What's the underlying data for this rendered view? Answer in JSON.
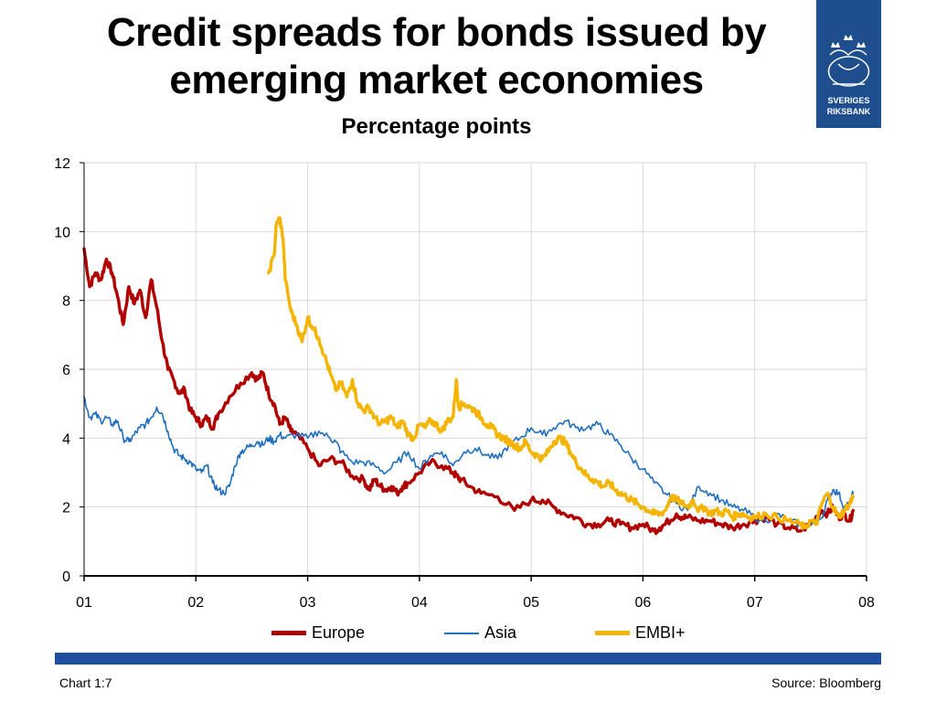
{
  "title": "Credit spreads for bonds issued by emerging market economies",
  "subtitle": "Percentage points",
  "footer": {
    "chart_label": "Chart 1:7",
    "source": "Source: Bloomberg"
  },
  "logo": {
    "text_line1": "SVERIGES",
    "text_line2": "RIKSBANK",
    "bg_color": "#1f4e8f"
  },
  "colors": {
    "europe": "#b00000",
    "asia": "#1f6fc0",
    "embi": "#f4b400",
    "rule": "#1f4e9e"
  },
  "chart_data": {
    "type": "line",
    "title": "Credit spreads for bonds issued by emerging market economies",
    "subtitle": "Percentage points",
    "xlabel": "",
    "ylabel": "",
    "x_tick_labels": [
      "01",
      "02",
      "03",
      "04",
      "05",
      "06",
      "07",
      "08"
    ],
    "xlim": [
      2001.0,
      2008.0
    ],
    "y_ticks": [
      0,
      2,
      4,
      6,
      8,
      10,
      12
    ],
    "ylim": [
      0,
      12
    ],
    "grid": true,
    "legend_position": "bottom",
    "series": [
      {
        "name": "Europe",
        "color": "#b00000",
        "x": [
          2001.0,
          2001.05,
          2001.1,
          2001.15,
          2001.2,
          2001.25,
          2001.3,
          2001.35,
          2001.4,
          2001.45,
          2001.5,
          2001.55,
          2001.6,
          2001.65,
          2001.7,
          2001.75,
          2001.8,
          2001.85,
          2001.9,
          2001.95,
          2002.0,
          2002.05,
          2002.1,
          2002.15,
          2002.2,
          2002.3,
          2002.4,
          2002.5,
          2002.55,
          2002.6,
          2002.65,
          2002.7,
          2002.75,
          2002.8,
          2002.85,
          2002.9,
          2003.0,
          2003.1,
          2003.2,
          2003.3,
          2003.4,
          2003.5,
          2003.55,
          2003.6,
          2003.65,
          2003.7,
          2003.75,
          2003.8,
          2003.85,
          2003.9,
          2004.0,
          2004.1,
          2004.2,
          2004.3,
          2004.33,
          2004.37,
          2004.45,
          2004.55,
          2004.7,
          2004.85,
          2005.0,
          2005.1,
          2005.2,
          2005.3,
          2005.4,
          2005.5,
          2005.6,
          2005.7,
          2005.8,
          2005.9,
          2006.0,
          2006.1,
          2006.15,
          2006.2,
          2006.3,
          2006.35,
          2006.4,
          2006.5,
          2006.6,
          2006.7,
          2006.8,
          2006.9,
          2007.0,
          2007.1,
          2007.2,
          2007.3,
          2007.4,
          2007.5,
          2007.6,
          2007.65,
          2007.7,
          2007.75,
          2007.8,
          2007.85,
          2007.88
        ],
        "y": [
          9.5,
          8.4,
          8.8,
          8.6,
          9.2,
          8.8,
          8.1,
          7.3,
          8.4,
          7.9,
          8.3,
          7.5,
          8.6,
          7.8,
          6.8,
          6.0,
          5.7,
          5.3,
          5.4,
          4.8,
          4.6,
          4.4,
          4.6,
          4.3,
          4.7,
          5.2,
          5.6,
          5.9,
          5.7,
          5.9,
          5.3,
          5.0,
          4.4,
          4.6,
          4.2,
          4.1,
          3.7,
          3.2,
          3.4,
          3.3,
          2.9,
          2.8,
          2.5,
          2.8,
          2.6,
          2.5,
          2.6,
          2.4,
          2.6,
          2.7,
          3.0,
          3.3,
          3.2,
          3.0,
          2.9,
          2.8,
          2.6,
          2.4,
          2.3,
          1.9,
          2.2,
          2.2,
          2.0,
          1.8,
          1.7,
          1.5,
          1.5,
          1.6,
          1.5,
          1.4,
          1.5,
          1.3,
          1.4,
          1.5,
          1.8,
          1.7,
          1.7,
          1.6,
          1.6,
          1.5,
          1.4,
          1.5,
          1.6,
          1.7,
          1.5,
          1.4,
          1.3,
          1.5,
          1.9,
          1.8,
          2.0,
          1.7,
          1.8,
          1.6,
          1.9
        ]
      },
      {
        "name": "Asia",
        "color": "#1f6fc0",
        "x": [
          2001.0,
          2001.05,
          2001.1,
          2001.15,
          2001.2,
          2001.25,
          2001.3,
          2001.35,
          2001.4,
          2001.45,
          2001.5,
          2001.55,
          2001.6,
          2001.65,
          2001.7,
          2001.75,
          2001.8,
          2001.85,
          2001.9,
          2001.95,
          2002.0,
          2002.05,
          2002.1,
          2002.15,
          2002.2,
          2002.25,
          2002.3,
          2002.35,
          2002.4,
          2002.45,
          2002.5,
          2002.55,
          2002.6,
          2002.65,
          2002.7,
          2002.75,
          2002.8,
          2002.9,
          2003.0,
          2003.1,
          2003.2,
          2003.25,
          2003.3,
          2003.4,
          2003.5,
          2003.6,
          2003.7,
          2003.8,
          2003.9,
          2004.0,
          2004.1,
          2004.2,
          2004.3,
          2004.4,
          2004.5,
          2004.6,
          2004.7,
          2004.8,
          2004.9,
          2005.0,
          2005.1,
          2005.2,
          2005.3,
          2005.4,
          2005.5,
          2005.6,
          2005.7,
          2005.8,
          2005.9,
          2006.0,
          2006.1,
          2006.2,
          2006.3,
          2006.4,
          2006.5,
          2006.6,
          2006.7,
          2006.8,
          2006.9,
          2007.0,
          2007.1,
          2007.2,
          2007.3,
          2007.4,
          2007.5,
          2007.6,
          2007.65,
          2007.7,
          2007.75,
          2007.8,
          2007.85,
          2007.88
        ],
        "y": [
          5.2,
          4.6,
          4.7,
          4.5,
          4.6,
          4.4,
          4.5,
          4.0,
          3.9,
          4.1,
          4.3,
          4.4,
          4.6,
          4.9,
          4.7,
          4.2,
          3.7,
          3.5,
          3.4,
          3.3,
          3.1,
          3.0,
          3.2,
          2.7,
          2.5,
          2.4,
          2.6,
          3.2,
          3.6,
          3.7,
          3.8,
          3.9,
          3.8,
          4.0,
          3.9,
          4.1,
          4.0,
          4.1,
          4.0,
          4.2,
          4.0,
          3.9,
          3.6,
          3.3,
          3.3,
          3.2,
          3.0,
          3.3,
          3.6,
          3.1,
          3.5,
          3.6,
          3.2,
          3.6,
          3.7,
          3.5,
          3.4,
          3.8,
          4.0,
          4.3,
          4.1,
          4.3,
          4.5,
          4.3,
          4.3,
          4.4,
          4.1,
          3.8,
          3.4,
          3.1,
          2.7,
          2.4,
          2.1,
          1.9,
          2.6,
          2.4,
          2.2,
          2.0,
          1.9,
          1.7,
          1.6,
          1.8,
          1.6,
          1.5,
          1.5,
          1.7,
          2.2,
          2.5,
          2.4,
          2.0,
          2.1,
          2.4
        ]
      },
      {
        "name": "EMBI+",
        "color": "#f4b400",
        "x": [
          2002.65,
          2002.7,
          2002.72,
          2002.75,
          2002.78,
          2002.8,
          2002.85,
          2002.9,
          2002.95,
          2003.0,
          2003.05,
          2003.1,
          2003.15,
          2003.2,
          2003.25,
          2003.3,
          2003.35,
          2003.4,
          2003.45,
          2003.5,
          2003.55,
          2003.6,
          2003.65,
          2003.7,
          2003.75,
          2003.8,
          2003.85,
          2003.9,
          2003.95,
          2004.0,
          2004.05,
          2004.1,
          2004.15,
          2004.2,
          2004.25,
          2004.3,
          2004.33,
          2004.35,
          2004.4,
          2004.45,
          2004.5,
          2004.55,
          2004.6,
          2004.65,
          2004.7,
          2004.75,
          2004.8,
          2004.85,
          2004.9,
          2004.95,
          2005.0,
          2005.05,
          2005.1,
          2005.15,
          2005.2,
          2005.25,
          2005.3,
          2005.35,
          2005.4,
          2005.45,
          2005.5,
          2005.55,
          2005.6,
          2005.65,
          2005.7,
          2005.75,
          2005.8,
          2005.85,
          2005.9,
          2005.95,
          2006.0,
          2006.05,
          2006.1,
          2006.15,
          2006.2,
          2006.25,
          2006.3,
          2006.35,
          2006.4,
          2006.45,
          2006.5,
          2006.55,
          2006.6,
          2006.65,
          2006.7,
          2006.75,
          2006.8,
          2006.85,
          2006.9,
          2006.95,
          2007.0,
          2007.1,
          2007.2,
          2007.3,
          2007.4,
          2007.45,
          2007.5,
          2007.55,
          2007.6,
          2007.65,
          2007.7,
          2007.75,
          2007.8,
          2007.85,
          2007.88
        ],
        "y": [
          8.8,
          9.3,
          10.2,
          10.4,
          9.8,
          8.6,
          7.7,
          7.3,
          6.8,
          7.5,
          7.2,
          6.9,
          6.4,
          5.9,
          5.4,
          5.6,
          5.2,
          5.7,
          5.0,
          4.8,
          4.9,
          4.6,
          4.4,
          4.5,
          4.6,
          4.3,
          4.5,
          4.1,
          4.0,
          4.4,
          4.3,
          4.5,
          4.4,
          4.2,
          4.5,
          4.6,
          5.7,
          4.9,
          5.0,
          4.9,
          4.8,
          4.6,
          4.4,
          4.3,
          4.1,
          4.0,
          3.9,
          3.8,
          3.7,
          3.9,
          3.6,
          3.5,
          3.4,
          3.6,
          3.9,
          4.0,
          3.9,
          3.6,
          3.3,
          3.1,
          2.9,
          2.8,
          2.7,
          2.6,
          2.7,
          2.5,
          2.4,
          2.3,
          2.2,
          2.1,
          2.0,
          1.9,
          1.8,
          1.8,
          1.9,
          2.3,
          2.2,
          2.1,
          2.0,
          2.2,
          1.9,
          2.0,
          1.8,
          1.9,
          1.8,
          1.9,
          1.7,
          1.8,
          1.8,
          1.7,
          1.7,
          1.8,
          1.7,
          1.6,
          1.5,
          1.4,
          1.6,
          1.5,
          2.1,
          2.4,
          2.0,
          1.7,
          1.9,
          2.1,
          2.3
        ]
      }
    ]
  }
}
